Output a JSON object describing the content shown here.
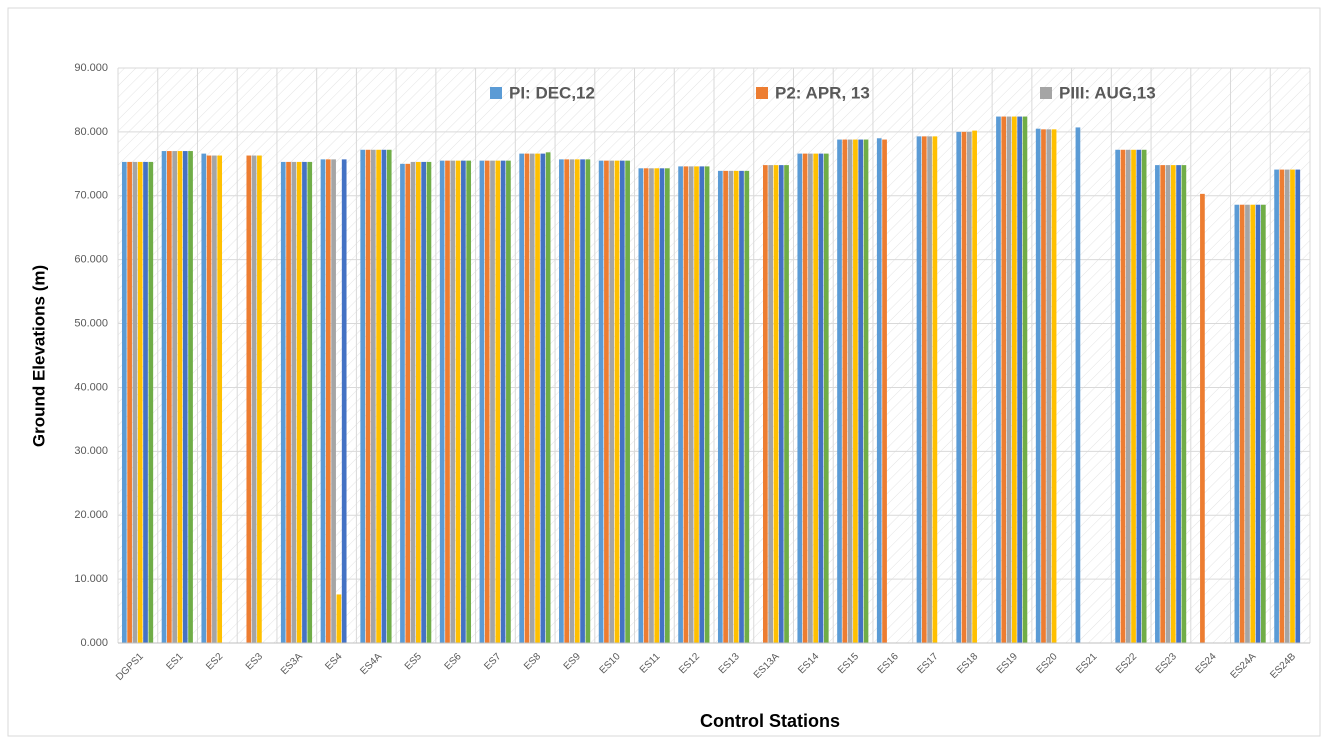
{
  "chart_data": {
    "type": "bar",
    "xlabel": "Control Stations",
    "ylabel": "Ground Elevations (m)",
    "categories": [
      "DGPS1",
      "ES1",
      "ES2",
      "ES3",
      "ES3A",
      "ES4",
      "ES4A",
      "ES5",
      "ES6",
      "ES7",
      "ES8",
      "ES9",
      "ES10",
      "ES11",
      "ES12",
      "ES13",
      "ES13A",
      "ES14",
      "ES15",
      "ES16",
      "ES17",
      "ES18",
      "ES19",
      "ES20",
      "ES21",
      "ES22",
      "ES23",
      "ES24",
      "ES24A",
      "ES24B"
    ],
    "series": [
      {
        "name": "PI: DEC,12",
        "color": "#5b9bd5",
        "values": [
          75.3,
          77.0,
          76.6,
          null,
          75.3,
          75.7,
          77.2,
          75.0,
          75.5,
          75.5,
          76.6,
          75.7,
          75.5,
          74.3,
          74.6,
          73.9,
          null,
          76.6,
          78.8,
          79.0,
          79.3,
          80.0,
          82.4,
          80.5,
          80.7,
          77.2,
          74.8,
          null,
          68.6,
          74.1
        ]
      },
      {
        "name": "P2: APR, 13",
        "color": "#ed7d31",
        "values": [
          75.3,
          77.0,
          76.3,
          76.3,
          75.3,
          75.7,
          77.2,
          75.0,
          75.5,
          75.5,
          76.6,
          75.7,
          75.5,
          74.3,
          74.6,
          73.9,
          74.8,
          76.6,
          78.8,
          78.8,
          79.3,
          80.0,
          82.4,
          80.4,
          null,
          77.2,
          74.8,
          70.3,
          68.6,
          74.1
        ]
      },
      {
        "name": "PIII: AUG,13",
        "color": "#a5a5a5",
        "values": [
          75.3,
          77.0,
          76.3,
          76.3,
          75.3,
          75.7,
          77.2,
          75.3,
          75.5,
          75.5,
          76.6,
          75.7,
          75.5,
          74.3,
          74.6,
          73.9,
          74.8,
          76.6,
          78.8,
          null,
          79.3,
          80.0,
          82.4,
          80.4,
          null,
          77.2,
          74.8,
          null,
          68.6,
          74.1
        ]
      },
      {
        "color": "#ffc000",
        "values": [
          75.3,
          77.0,
          76.3,
          76.3,
          75.3,
          7.6,
          77.2,
          75.3,
          75.5,
          75.5,
          76.6,
          75.7,
          75.5,
          74.3,
          74.6,
          73.9,
          74.8,
          76.6,
          78.8,
          null,
          79.3,
          80.2,
          82.4,
          80.4,
          null,
          77.2,
          74.8,
          null,
          68.6,
          74.1
        ]
      },
      {
        "color": "#4472c4",
        "values": [
          75.3,
          77.0,
          null,
          null,
          75.3,
          75.7,
          77.2,
          75.3,
          75.5,
          75.5,
          76.6,
          75.7,
          75.5,
          74.3,
          74.6,
          73.9,
          74.8,
          76.6,
          78.8,
          null,
          null,
          null,
          82.4,
          null,
          null,
          77.2,
          74.8,
          null,
          68.6,
          74.1
        ]
      },
      {
        "color": "#70ad47",
        "values": [
          75.3,
          77.0,
          null,
          null,
          75.3,
          null,
          77.2,
          75.3,
          75.5,
          75.5,
          76.8,
          75.7,
          75.5,
          74.3,
          74.6,
          73.9,
          74.8,
          76.6,
          78.8,
          null,
          null,
          null,
          82.4,
          null,
          null,
          77.2,
          74.8,
          null,
          68.6,
          null
        ]
      }
    ],
    "ylim": [
      0,
      90
    ],
    "yticks": [
      {
        "value": 0,
        "label": "0.000"
      },
      {
        "value": 10,
        "label": "10.000"
      },
      {
        "value": 20,
        "label": "20.000"
      },
      {
        "value": 30,
        "label": "30.000"
      },
      {
        "value": 40,
        "label": "40.000"
      },
      {
        "value": 50,
        "label": "50.000"
      },
      {
        "value": 60,
        "label": "60.000"
      },
      {
        "value": 70,
        "label": "70.000"
      },
      {
        "value": 80,
        "label": "80.000"
      },
      {
        "value": 90,
        "label": "90.000"
      }
    ],
    "grid": true,
    "legend": "top"
  }
}
